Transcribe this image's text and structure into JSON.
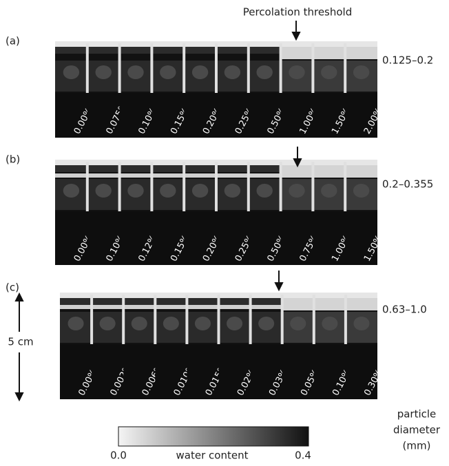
{
  "annotation": "Percolation threshold",
  "panels": [
    {
      "label": "(a)",
      "diameter": "0.125–0.2",
      "columns": [
        "0.00%",
        "0.075%",
        "0.10%",
        "0.15%",
        "0.20%",
        "0.25%",
        "0.50%",
        "1.00%",
        "1.50%",
        "2.00%"
      ]
    },
    {
      "label": "(b)",
      "diameter": "0.2–0.355",
      "columns": [
        "0.00%",
        "0.10%",
        "0.12%",
        "0.15%",
        "0.20%",
        "0.25%",
        "0.50%",
        "0.75%",
        "1.00%",
        "1.50%"
      ]
    },
    {
      "label": "(c)",
      "diameter": "0.63–1.0",
      "columns": [
        "0.00%",
        "0.002%",
        "0.006%",
        "0.010%",
        "0.015%",
        "0.02%",
        "0.03%",
        "0.05%",
        "0.10%",
        "0.30%"
      ]
    }
  ],
  "scale_bar": "5 cm",
  "colorbar": {
    "min": "0.0",
    "label": "water content",
    "max": "0.4"
  },
  "legend_title": [
    "particle",
    "diameter",
    "(mm)"
  ]
}
